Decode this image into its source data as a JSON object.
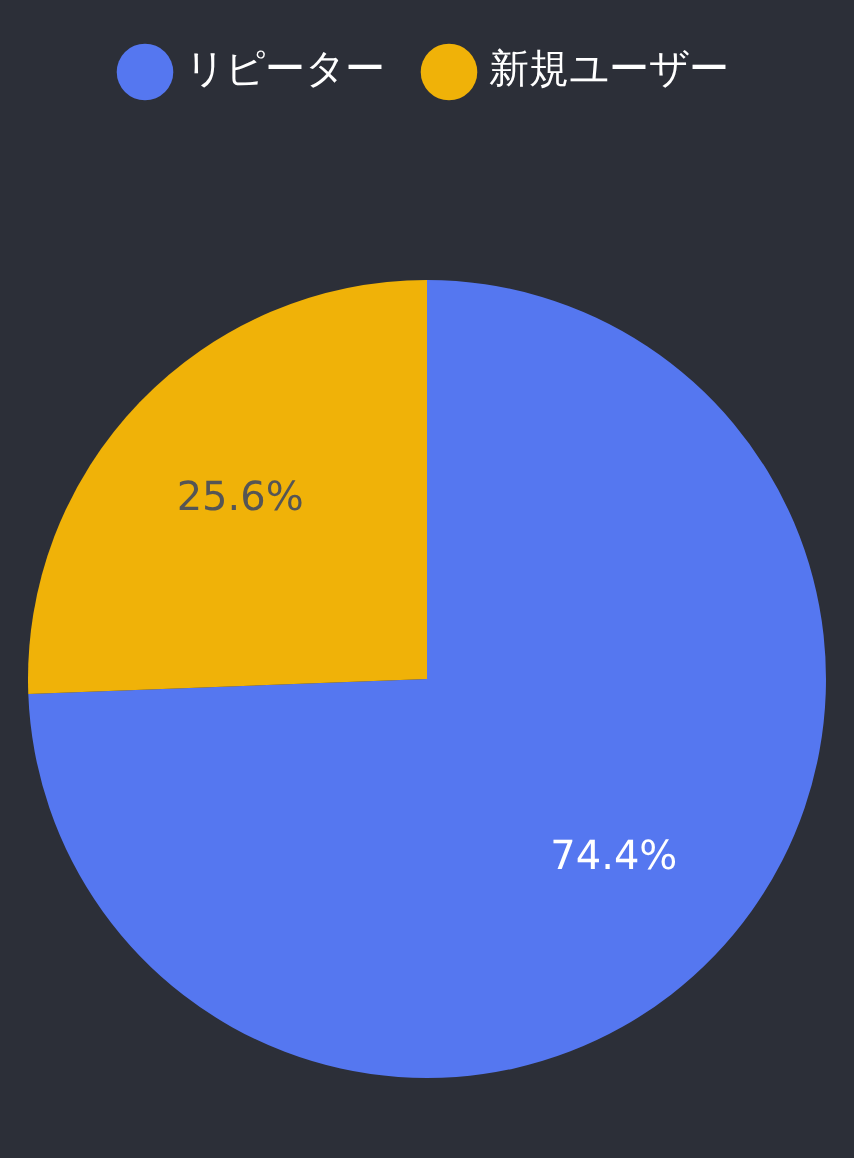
{
  "chart_data": {
    "type": "pie",
    "categories": [
      "リピーター",
      "新規ユーザー"
    ],
    "values": [
      74.4,
      25.6
    ],
    "colors": [
      "#5577f0",
      "#f0b208"
    ],
    "value_labels": [
      "74.4%",
      "25.6%"
    ],
    "legend": "top"
  }
}
